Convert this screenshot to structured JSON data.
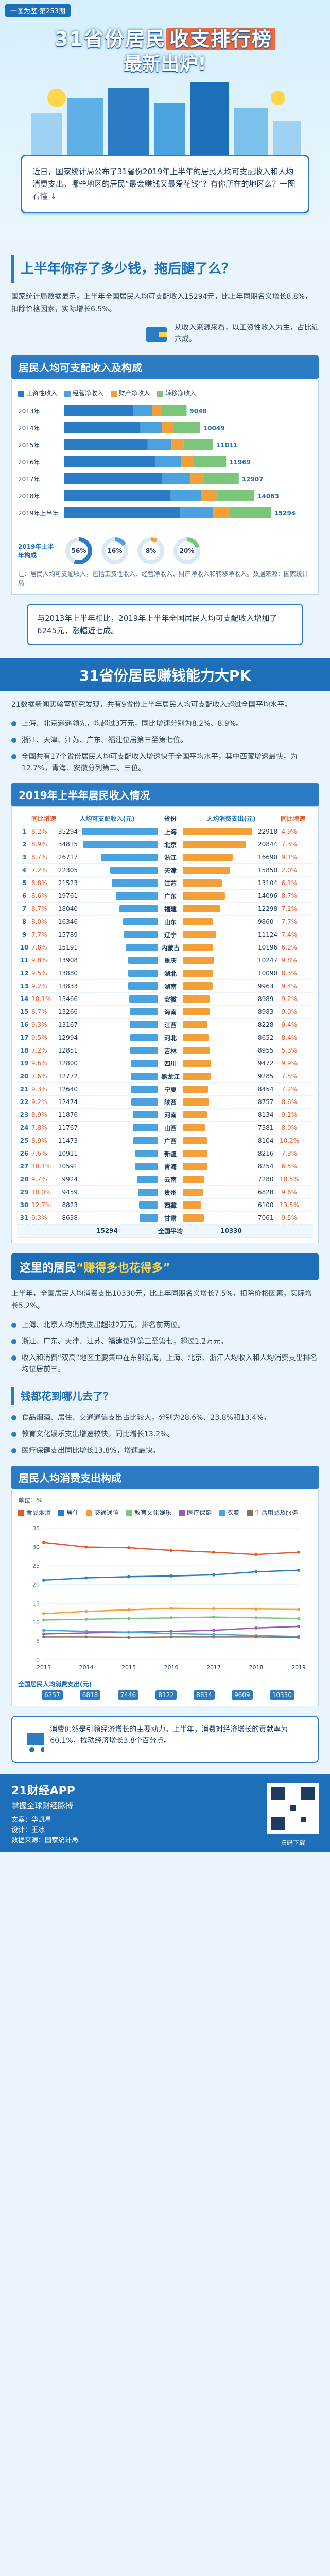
{
  "hero": {
    "tag": "一图为鉴·第253期",
    "title_pre": "31省份居民",
    "title_hl": "收支排行榜",
    "title_post": "最新出炉!"
  },
  "intro": "近日，国家统计局公布了31省份2019年上半年的居民人均可支配收入和人均消费支出。哪些地区的居民“最会赚钱又最爱花钱”？有你所在的地区么？一图看懂 ↓",
  "s1": {
    "q": "上半年你存了多少钱，拖后腿了么？",
    "para": "国家统计局数据显示，上半年全国居民人均可支配收入15294元，比上年同期名义增长8.8%，扣除价格因素，实际增长6.5%。",
    "note": "从收入来源来看，以工资性收入为主，占比近六成。"
  },
  "inc": {
    "head": "居民人均可支配收入及构成",
    "legend": [
      "工资性收入",
      "经营净收入",
      "财产净收入",
      "转移净收入"
    ],
    "colors": [
      "#2b7cc4",
      "#4aa3df",
      "#f4a03a",
      "#7bc67b"
    ],
    "years": [
      "2013年",
      "2014年",
      "2015年",
      "2016年",
      "2017年",
      "2018年",
      "2019年上半年"
    ],
    "totals": [
      "9048",
      "10049",
      "11011",
      "11969",
      "12907",
      "14063",
      "15294"
    ],
    "pie_label": "2019年上半年构成",
    "pie_pcts": [
      "56%",
      "16%",
      "8%",
      "20%"
    ],
    "source": "注：居民人均可支配收入，包括工资性收入、经营净收入、财产净收入和转移净收入。数据来源：国家统计局"
  },
  "callout": "与2013年上半年相比，2019年上半年全国居民人均可支配收入增加了6245元，涨幅近七成。",
  "s2": {
    "title": "31省份居民赚钱能力大PK",
    "intro": "21数据新闻实验室研究发现，共有9省份上半年居民人均可支配收入超过全国平均水平。",
    "bullets": [
      "上海、北京遥遥领先，均超过3万元，同比增速分别为8.2%、8.9%。",
      "浙江、天津、江苏、广东、福建位居第三至第七位。",
      "全国共有17个省份居民人均可支配收入增速快于全国平均水平，其中西藏增速最快，为12.7%，青海、安徽分列第二、三位。"
    ]
  },
  "rank": {
    "head": "2019年上半年居民收入情况",
    "cols": [
      "同比增速",
      "人均可支配收入(元)",
      "",
      "省份",
      "人均消费支出(元)",
      "同比增速"
    ],
    "rows": [
      {
        "rank": "1",
        "inc": "35294",
        "name": "上海",
        "spd": "22918",
        "g1": "8.2%",
        "g2": "4.9%"
      },
      {
        "rank": "2",
        "inc": "34815",
        "name": "北京",
        "spd": "20844",
        "g1": "8.9%",
        "g2": "7.3%"
      },
      {
        "rank": "3",
        "inc": "26717",
        "name": "浙江",
        "spd": "16690",
        "g1": "8.7%",
        "g2": "9.1%"
      },
      {
        "rank": "4",
        "inc": "22305",
        "name": "天津",
        "spd": "15850",
        "g1": "7.2%",
        "g2": "2.0%"
      },
      {
        "rank": "5",
        "inc": "21523",
        "name": "江苏",
        "spd": "13104",
        "g1": "8.8%",
        "g2": "6.1%"
      },
      {
        "rank": "6",
        "inc": "19761",
        "name": "广东",
        "spd": "14096",
        "g1": "8.6%",
        "g2": "8.7%"
      },
      {
        "rank": "7",
        "inc": "18040",
        "name": "福建",
        "spd": "12298",
        "g1": "8.7%",
        "g2": "7.1%"
      },
      {
        "rank": "8",
        "inc": "16346",
        "name": "山东",
        "spd": "9860",
        "g1": "8.0%",
        "g2": "7.7%"
      },
      {
        "rank": "9",
        "inc": "15789",
        "name": "辽宁",
        "spd": "11124",
        "g1": "7.7%",
        "g2": "7.4%"
      },
      {
        "rank": "10",
        "inc": "15191",
        "name": "内蒙古",
        "spd": "10196",
        "g1": "7.8%",
        "g2": "6.2%"
      },
      {
        "rank": "11",
        "inc": "13908",
        "name": "重庆",
        "spd": "10247",
        "g1": "9.8%",
        "g2": "9.8%"
      },
      {
        "rank": "12",
        "inc": "13880",
        "name": "湖北",
        "spd": "10090",
        "g1": "9.5%",
        "g2": "8.3%"
      },
      {
        "rank": "13",
        "inc": "13833",
        "name": "湖南",
        "spd": "9963",
        "g1": "9.2%",
        "g2": "9.4%"
      },
      {
        "rank": "14",
        "inc": "13466",
        "name": "安徽",
        "spd": "8989",
        "g1": "10.1%",
        "g2": "9.2%"
      },
      {
        "rank": "15",
        "inc": "13266",
        "name": "海南",
        "spd": "8983",
        "g1": "8.7%",
        "g2": "9.0%"
      },
      {
        "rank": "16",
        "inc": "13167",
        "name": "江西",
        "spd": "8228",
        "g1": "9.3%",
        "g2": "9.4%"
      },
      {
        "rank": "17",
        "inc": "12994",
        "name": "河北",
        "spd": "8652",
        "g1": "9.5%",
        "g2": "8.4%"
      },
      {
        "rank": "18",
        "inc": "12851",
        "name": "吉林",
        "spd": "8955",
        "g1": "7.2%",
        "g2": "5.3%"
      },
      {
        "rank": "19",
        "inc": "12800",
        "name": "四川",
        "spd": "9472",
        "g1": "9.6%",
        "g2": "9.9%"
      },
      {
        "rank": "20",
        "inc": "12772",
        "name": "黑龙江",
        "spd": "9285",
        "g1": "7.6%",
        "g2": "7.5%"
      },
      {
        "rank": "21",
        "inc": "12640",
        "name": "宁夏",
        "spd": "8454",
        "g1": "9.3%",
        "g2": "7.2%"
      },
      {
        "rank": "22",
        "inc": "12474",
        "name": "陕西",
        "spd": "8757",
        "g1": "9.2%",
        "g2": "8.6%"
      },
      {
        "rank": "23",
        "inc": "11876",
        "name": "河南",
        "spd": "8134",
        "g1": "8.9%",
        "g2": "9.1%"
      },
      {
        "rank": "24",
        "inc": "11767",
        "name": "山西",
        "spd": "7381",
        "g1": "7.8%",
        "g2": "8.0%"
      },
      {
        "rank": "25",
        "inc": "11473",
        "name": "广西",
        "spd": "8104",
        "g1": "8.9%",
        "g2": "10.2%"
      },
      {
        "rank": "26",
        "inc": "10911",
        "name": "新疆",
        "spd": "8216",
        "g1": "7.6%",
        "g2": "7.3%"
      },
      {
        "rank": "27",
        "inc": "10591",
        "name": "青海",
        "spd": "8254",
        "g1": "10.1%",
        "g2": "6.5%"
      },
      {
        "rank": "28",
        "inc": "9924",
        "name": "云南",
        "spd": "7280",
        "g1": "9.7%",
        "g2": "10.5%"
      },
      {
        "rank": "29",
        "inc": "9459",
        "name": "贵州",
        "spd": "6828",
        "g1": "10.0%",
        "g2": "9.6%"
      },
      {
        "rank": "30",
        "inc": "8823",
        "name": "西藏",
        "spd": "6100",
        "g1": "12.7%",
        "g2": "13.5%"
      },
      {
        "rank": "31",
        "inc": "8638",
        "name": "甘肃",
        "spd": "7061",
        "g1": "9.3%",
        "g2": "9.5%"
      }
    ],
    "avg_label": "全国平均",
    "avg_inc": "15294",
    "avg_spd": "10330"
  },
  "s3": {
    "title_pre": "这里的居民",
    "title_hl": "“赚得多也花得多”",
    "para": "上半年，全国居民人均消费支出10330元，比上年同期名义增长7.5%，扣除价格因素，实际增长5.2%。",
    "bullets": [
      "上海、北京人均消费支出超过2万元，排名前两位。",
      "浙江、广东、天津、江苏、福建位列第三至第七，超过1.2万元。",
      "收入和消费“双高”地区主要集中在东部沿海，上海、北京、浙江人均收入和人均消费支出排名均位居前三。"
    ],
    "q": "钱都花到哪儿去了？",
    "b2": [
      "食品烟酒、居住、交通通信支出占比较大，分别为28.6%、23.8%和13.4%。",
      "教育文化娱乐支出增速较快，同比增长13.2%。",
      "医疗保健支出同比增长13.8%，增速最快。"
    ]
  },
  "spd": {
    "head": "居民人均消费支出构成",
    "years": [
      "2013",
      "2014",
      "2015",
      "2016",
      "2017",
      "2018",
      "2019"
    ],
    "unit": "单位：%",
    "series": [
      {
        "name": "食品烟酒",
        "values": [
          31.2,
          30.0,
          29.8,
          29.1,
          28.6,
          28.0,
          28.6
        ]
      },
      {
        "name": "居住",
        "values": [
          21.2,
          21.8,
          22.1,
          22.3,
          22.6,
          23.4,
          23.8
        ]
      },
      {
        "name": "交通通信",
        "values": [
          12.3,
          12.9,
          13.3,
          13.7,
          13.6,
          13.5,
          13.4
        ]
      },
      {
        "name": "教育文化娱乐",
        "values": [
          10.6,
          10.8,
          11.0,
          11.2,
          11.4,
          11.2,
          11.0
        ]
      },
      {
        "name": "医疗保健",
        "values": [
          6.9,
          7.2,
          7.4,
          7.6,
          7.9,
          8.5,
          8.9
        ]
      },
      {
        "name": "衣着",
        "values": [
          7.9,
          7.6,
          7.4,
          7.0,
          6.8,
          6.5,
          6.2
        ]
      },
      {
        "name": "生活用品及服务",
        "values": [
          6.1,
          6.1,
          6.0,
          6.1,
          6.1,
          6.1,
          6.0
        ]
      }
    ],
    "totals": [
      "6257",
      "6818",
      "7446",
      "8122",
      "8834",
      "9609",
      "10330"
    ],
    "totals_label": "全国居民人均消费支出(元)"
  },
  "summary": "消费仍然是引领经济增长的主要动力。上半年，消费对经济增长的贡献率为60.1%，拉动经济增长3.8个百分点。",
  "footer": {
    "brand": "21财经APP",
    "slogan": "掌握全球财经脉搏",
    "credits": [
      "文案：华凯星",
      "设计：王冰",
      "数据来源：国家统计局"
    ],
    "qr_label": "扫码下载"
  }
}
